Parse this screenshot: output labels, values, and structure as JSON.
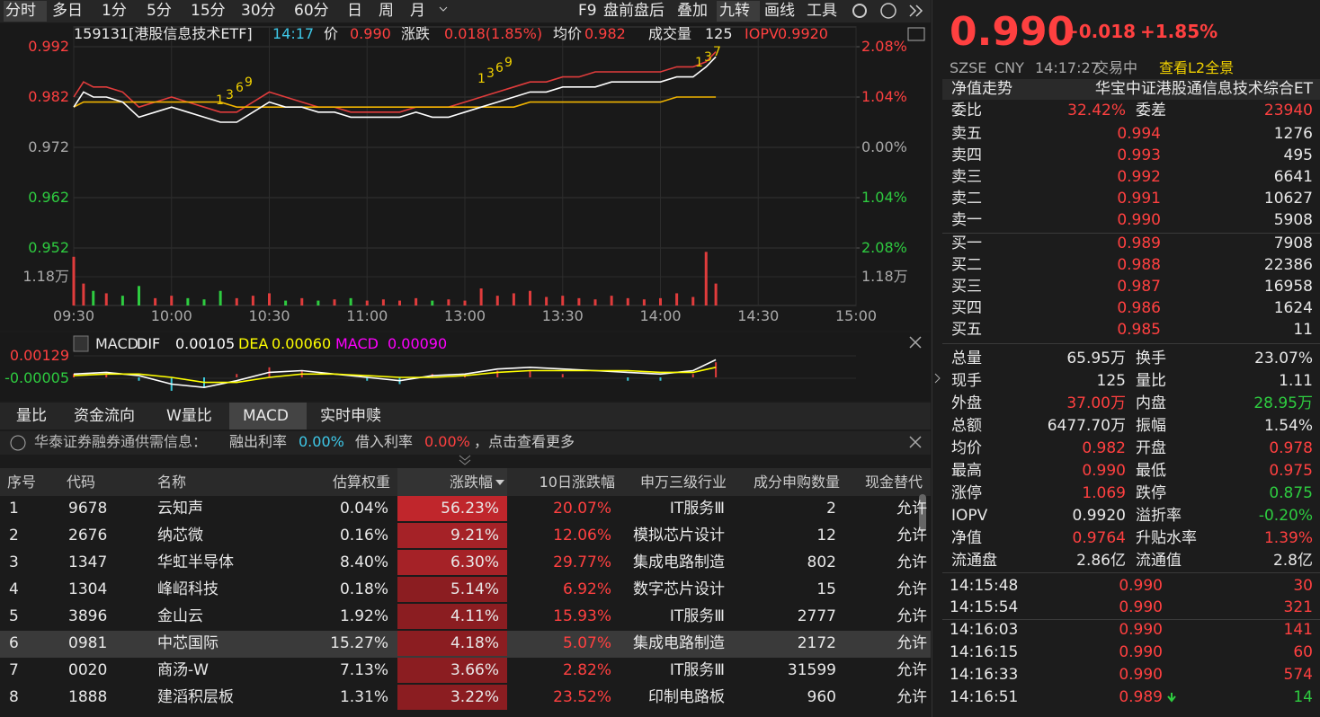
{
  "toolbar": {
    "periods": [
      "分时",
      "多日",
      "1分",
      "5分",
      "15分",
      "30分",
      "60分",
      "日",
      "周",
      "月"
    ],
    "tools": [
      "F9",
      "盘前盘后",
      "叠加",
      "九转",
      "画线",
      "工具"
    ]
  },
  "quote_header": {
    "code": "159131[港股信息技术ETF]",
    "time": "14:17",
    "price_label": "价",
    "price": "0.990",
    "change_label": "涨跌",
    "change": "0.018(1.85%)",
    "avg_label": "均价",
    "avg": "0.982",
    "volume_label": "成交量",
    "volume": "125",
    "iopv_label": "IOPV",
    "iopv": "0.9920"
  },
  "chart_data": [
    {
      "type": "line",
      "x": [
        0,
        3,
        6,
        10,
        15,
        20,
        25,
        30,
        35,
        40,
        45,
        50,
        55,
        60,
        65,
        70,
        75,
        80,
        85,
        90,
        95,
        100,
        105,
        110,
        115,
        120,
        125,
        130,
        135,
        140,
        145,
        150,
        155,
        160,
        165,
        170,
        175,
        180,
        185,
        190,
        194,
        197
      ],
      "xlim": [
        0,
        240
      ],
      "xticks": [
        {
          "value": 0,
          "label": "09:30"
        },
        {
          "value": 30,
          "label": "10:00"
        },
        {
          "value": 60,
          "label": "10:30"
        },
        {
          "value": 90,
          "label": "11:00"
        },
        {
          "value": 120,
          "label": "13:00"
        },
        {
          "value": 150,
          "label": "13:30"
        },
        {
          "value": 180,
          "label": "14:00"
        },
        {
          "value": 210,
          "label": "14:30"
        },
        {
          "value": 240,
          "label": "15:00"
        }
      ],
      "ylim": [
        0.952,
        0.992
      ],
      "yticks": [
        0.992,
        0.982,
        0.972,
        0.962,
        0.952
      ],
      "y2lim": [
        -2.08,
        2.08
      ],
      "y2ticks": [
        {
          "value": 2.08,
          "label": "2.08%"
        },
        {
          "value": 1.04,
          "label": "1.04%"
        },
        {
          "value": 0,
          "label": "0.00%"
        },
        {
          "value": -1.04,
          "label": "1.04%"
        },
        {
          "value": -2.08,
          "label": "2.08%"
        }
      ],
      "grid": true,
      "series": [
        {
          "color": "#e03c3c",
          "values": [
            0.982,
            0.985,
            0.984,
            0.984,
            0.983,
            0.98,
            0.981,
            0.982,
            0.981,
            0.98,
            0.979,
            0.979,
            0.981,
            0.983,
            0.982,
            0.981,
            0.98,
            0.98,
            0.979,
            0.979,
            0.979,
            0.979,
            0.98,
            0.98,
            0.98,
            0.981,
            0.982,
            0.983,
            0.984,
            0.985,
            0.985,
            0.986,
            0.986,
            0.987,
            0.987,
            0.987,
            0.987,
            0.987,
            0.988,
            0.988,
            0.989,
            0.991
          ]
        },
        {
          "color": "#f0b400",
          "values": [
            0.98,
            0.981,
            0.981,
            0.981,
            0.981,
            0.981,
            0.981,
            0.981,
            0.981,
            0.981,
            0.981,
            0.98,
            0.98,
            0.98,
            0.98,
            0.98,
            0.98,
            0.98,
            0.98,
            0.98,
            0.98,
            0.98,
            0.98,
            0.98,
            0.98,
            0.98,
            0.98,
            0.98,
            0.98,
            0.981,
            0.981,
            0.981,
            0.981,
            0.981,
            0.981,
            0.981,
            0.981,
            0.981,
            0.982,
            0.982,
            0.982,
            0.982
          ]
        },
        {
          "color": "#ffffff",
          "values": [
            0.98,
            0.983,
            0.982,
            0.982,
            0.981,
            0.978,
            0.979,
            0.98,
            0.979,
            0.978,
            0.977,
            0.977,
            0.979,
            0.981,
            0.98,
            0.98,
            0.979,
            0.979,
            0.978,
            0.978,
            0.978,
            0.978,
            0.979,
            0.978,
            0.978,
            0.979,
            0.98,
            0.981,
            0.982,
            0.983,
            0.983,
            0.984,
            0.984,
            0.984,
            0.985,
            0.985,
            0.985,
            0.985,
            0.986,
            0.986,
            0.988,
            0.99
          ]
        }
      ],
      "annotations": [
        "1",
        "3",
        "6",
        "9",
        "1",
        "3",
        "6",
        "9",
        "1",
        "3",
        "7"
      ]
    },
    {
      "type": "bar",
      "x": [
        0,
        3,
        6,
        10,
        15,
        20,
        25,
        30,
        35,
        40,
        45,
        50,
        55,
        60,
        65,
        70,
        75,
        80,
        85,
        90,
        95,
        100,
        105,
        110,
        115,
        120,
        125,
        130,
        135,
        140,
        145,
        150,
        155,
        160,
        165,
        170,
        175,
        180,
        185,
        190,
        194,
        197
      ],
      "xlim": [
        0,
        240
      ],
      "ylim": [
        0,
        23600
      ],
      "yticks": [
        {
          "value": 11800,
          "label": "1.18万"
        }
      ],
      "values": [
        20000,
        9000,
        6000,
        5000,
        4000,
        8000,
        3000,
        4000,
        3000,
        2500,
        6000,
        3000,
        4000,
        5000,
        2000,
        3000,
        2000,
        2500,
        3000,
        2000,
        2500,
        2000,
        3000,
        2000,
        2500,
        2000,
        7000,
        4000,
        5000,
        6000,
        3500,
        4000,
        3000,
        2500,
        4000,
        3000,
        2500,
        3000,
        5000,
        3500,
        22000,
        9000
      ],
      "up_color": "#e03c3c",
      "down_color": "#2ecc40"
    },
    {
      "type": "line",
      "title": "MACD",
      "x": [
        0,
        10,
        20,
        30,
        40,
        50,
        60,
        70,
        80,
        90,
        100,
        110,
        120,
        130,
        140,
        150,
        160,
        170,
        180,
        190,
        197
      ],
      "xlim": [
        0,
        240
      ],
      "ylim": [
        -0.00134,
        0.00177
      ],
      "yticks": [
        0.00129,
        -5e-05
      ],
      "series": [
        {
          "name": "DIF",
          "value_label": "0.00105",
          "color": "#ffffff",
          "values": [
            0.0002,
            0.0003,
            0.0001,
            -0.0004,
            -0.0006,
            -0.0002,
            0.0003,
            0.0004,
            0.0002,
            0,
            -0.0002,
            0.0001,
            0.0002,
            0.0005,
            0.0006,
            0.0005,
            0.0004,
            0.0003,
            0.0002,
            0.0004,
            0.00105
          ]
        },
        {
          "name": "DEA",
          "value_label": "0.00060",
          "color": "#ffff00",
          "values": [
            0.0001,
            0.0002,
            0.0002,
            0,
            -0.0003,
            -0.0003,
            0,
            0.0002,
            0.0002,
            0.0001,
            0,
            0,
            0.0001,
            0.0003,
            0.0004,
            0.0004,
            0.0004,
            0.0004,
            0.0003,
            0.0003,
            0.0006
          ]
        },
        {
          "name": "MACD",
          "value_label": "0.00090",
          "color": "#ff00ff",
          "up_color": "#e03c3c",
          "down_color": "#3cc8d8",
          "values": [
            0.0002,
            0.0002,
            -0.0002,
            -0.0008,
            -0.0006,
            0.0002,
            0.0006,
            0.0004,
            0,
            -0.0002,
            -0.0004,
            0.0002,
            0.0002,
            0.0004,
            0.0004,
            0.0002,
            0,
            -0.0002,
            -0.0002,
            0.0002,
            0.0009
          ]
        }
      ]
    }
  ],
  "indicator_tabs": [
    "量比",
    "资金流向",
    "W量比",
    "MACD",
    "实时申赎"
  ],
  "notice": {
    "source": "华泰证券融券通供需信息：",
    "lend_label": "融出利率",
    "lend": "0.00%",
    "borrow_label": "借入利率",
    "borrow": "0.00%",
    "more": "，点击查看更多"
  },
  "table": {
    "columns": [
      "序号",
      "代码",
      "名称",
      "估算权重",
      "涨跌幅",
      "10日涨跌幅",
      "申万三级行业",
      "成分申购数量",
      "现金替代"
    ],
    "rows": [
      [
        "1",
        "9678",
        "云知声",
        "0.04%",
        "56.23%",
        "20.07%",
        "IT服务Ⅲ",
        "2",
        "允许"
      ],
      [
        "2",
        "2676",
        "纳芯微",
        "0.16%",
        "9.21%",
        "12.06%",
        "模拟芯片设计",
        "12",
        "允许"
      ],
      [
        "3",
        "1347",
        "华虹半导体",
        "8.40%",
        "6.30%",
        "29.77%",
        "集成电路制造",
        "802",
        "允许"
      ],
      [
        "4",
        "1304",
        "峰岹科技",
        "0.18%",
        "5.14%",
        "6.92%",
        "数字芯片设计",
        "15",
        "允许"
      ],
      [
        "5",
        "3896",
        "金山云",
        "1.92%",
        "4.11%",
        "15.93%",
        "IT服务Ⅲ",
        "2777",
        "允许"
      ],
      [
        "6",
        "0981",
        "中芯国际",
        "15.27%",
        "4.18%",
        "5.07%",
        "集成电路制造",
        "2172",
        "允许"
      ],
      [
        "7",
        "0020",
        "商汤-W",
        "7.13%",
        "3.66%",
        "2.82%",
        "IT服务Ⅲ",
        "31599",
        "允许"
      ],
      [
        "8",
        "1888",
        "建滔积层板",
        "1.31%",
        "3.22%",
        "23.52%",
        "印制电路板",
        "960",
        "允许"
      ]
    ]
  },
  "quote": {
    "price": "0.990",
    "change": "+0.018",
    "change_pct": "+1.85%",
    "exchange": "SZSE",
    "currency": "CNY",
    "time": "14:17:27",
    "status": "交易中",
    "l2_link": "查看L2全景",
    "nav_tab": "净值走势",
    "fund_name": "华宝中证港股通信息技术综合ET",
    "ratio_label": "委比",
    "ratio": "32.42%",
    "diff_label": "委差",
    "diff": "23940",
    "asks": [
      [
        "卖五",
        "0.994",
        "1276"
      ],
      [
        "卖四",
        "0.993",
        "495"
      ],
      [
        "卖三",
        "0.992",
        "6641"
      ],
      [
        "卖二",
        "0.991",
        "10627"
      ],
      [
        "卖一",
        "0.990",
        "5908"
      ]
    ],
    "bids": [
      [
        "买一",
        "0.989",
        "7908"
      ],
      [
        "买二",
        "0.988",
        "22386"
      ],
      [
        "买三",
        "0.987",
        "16958"
      ],
      [
        "买四",
        "0.986",
        "1624"
      ],
      [
        "买五",
        "0.985",
        "11"
      ]
    ],
    "stats": [
      [
        "总量",
        "65.95万",
        "换手",
        "23.07%"
      ],
      [
        "现手",
        "125",
        "量比",
        "1.11"
      ],
      [
        "外盘",
        "37.00万",
        "内盘",
        "28.95万"
      ],
      [
        "总额",
        "6477.70万",
        "振幅",
        "1.54%"
      ],
      [
        "均价",
        "0.982",
        "开盘",
        "0.978"
      ],
      [
        "最高",
        "0.990",
        "最低",
        "0.975"
      ],
      [
        "涨停",
        "1.069",
        "跌停",
        "0.875"
      ],
      [
        "IOPV",
        "0.9920",
        "溢折率",
        "-0.20%"
      ],
      [
        "净值",
        "0.9764",
        "升贴水率",
        "1.39%"
      ],
      [
        "流通盘",
        "2.86亿",
        "流通值",
        "2.8亿"
      ]
    ],
    "trades": [
      [
        "14:15:48",
        "0.990",
        "30"
      ],
      [
        "14:15:54",
        "0.990",
        "321"
      ],
      [
        "14:16:03",
        "0.990",
        "141"
      ],
      [
        "14:16:15",
        "0.990",
        "60"
      ],
      [
        "14:16:33",
        "0.990",
        "574"
      ],
      [
        "14:16:51",
        "0.989",
        "14"
      ]
    ]
  }
}
